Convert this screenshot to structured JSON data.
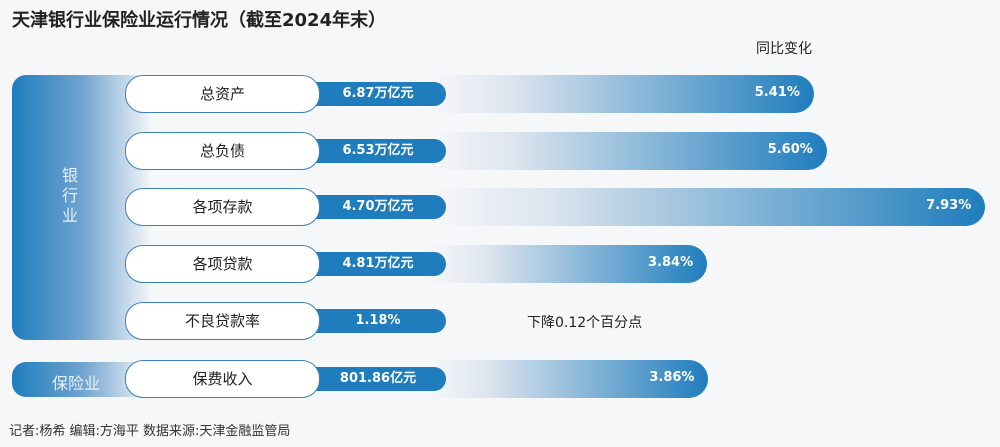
{
  "title": "天津银行业保险业运行情况（截至2024年末）",
  "chart_data": {
    "type": "bar",
    "title": "天津银行业保险业运行情况（截至2024年末）",
    "legend_header": "同比变化",
    "groups": [
      {
        "name": "银行业",
        "rows": [
          0,
          1,
          2,
          3,
          4
        ]
      },
      {
        "name": "保险业",
        "rows": [
          5
        ]
      }
    ],
    "rows": [
      {
        "label": "总资产",
        "value": "6.87万亿元",
        "yoy": 5.41,
        "yoy_label": "5.41%"
      },
      {
        "label": "总负债",
        "value": "6.53万亿元",
        "yoy": 5.6,
        "yoy_label": "5.60%"
      },
      {
        "label": "各项存款",
        "value": "4.70万亿元",
        "yoy": 7.93,
        "yoy_label": "7.93%"
      },
      {
        "label": "各项贷款",
        "value": "4.81万亿元",
        "yoy": 3.84,
        "yoy_label": "3.84%"
      },
      {
        "label": "不良贷款率",
        "value": "1.18%",
        "yoy": null,
        "yoy_label": "下降0.12个百分点"
      },
      {
        "label": "保费收入",
        "value": "801.86亿元",
        "yoy": 3.86,
        "yoy_label": "3.86%"
      }
    ],
    "colors": {
      "primary": "#1f7dbd",
      "background": "#f6f7f9"
    }
  },
  "footer": "记者:杨希  编辑:方海平  数据来源:天津金融监管局"
}
